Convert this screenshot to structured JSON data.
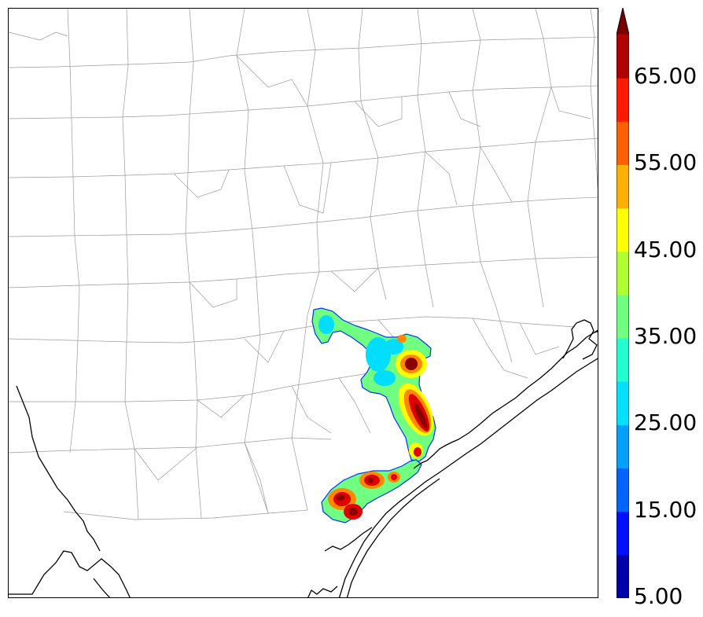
{
  "colorbar": {
    "labels": [
      "5.00",
      "15.00",
      "25.00",
      "35.00",
      "45.00",
      "55.00",
      "65.00"
    ],
    "colors": [
      "#0000a8",
      "#0010ff",
      "#0064ff",
      "#00a0ff",
      "#00e0ff",
      "#20ffd0",
      "#70ff80",
      "#b0ff30",
      "#ffff00",
      "#ffb000",
      "#ff6000",
      "#ff1a00",
      "#b00000"
    ],
    "extend_color": "#7a0000"
  },
  "map": {
    "county_line_color": "#9a9a9a",
    "coastline_color": "#000000",
    "field_colors": {
      "edge": "#0033ff",
      "low": "#00ddff",
      "mid": "#70ff80",
      "high": "#ffff00",
      "higher": "#ff8800",
      "peak": "#e00000",
      "core": "#8b0000"
    }
  }
}
